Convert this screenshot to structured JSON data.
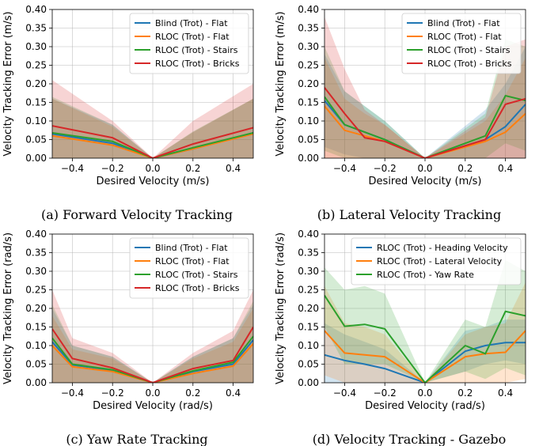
{
  "chart_data": [
    {
      "type": "line",
      "caption": "(a) Forward Velocity Tracking",
      "xlabel": "Desired Velocity (m/s)",
      "ylabel": "Velocity Tracking Error (m/s)",
      "xlim": [
        -0.5,
        0.5
      ],
      "ylim": [
        0,
        0.4
      ],
      "xticks": [
        -0.4,
        -0.2,
        0.0,
        0.2,
        0.4
      ],
      "xtick_labels": [
        "−0.4",
        "−0.2",
        "0.0",
        "0.2",
        "0.4"
      ],
      "yticks": [
        0,
        0.05,
        0.1,
        0.15,
        0.2,
        0.25,
        0.3,
        0.35,
        0.4
      ],
      "ytick_labels": [
        "0.00",
        "0.05",
        "0.10",
        "0.15",
        "0.20",
        "0.25",
        "0.30",
        "0.35",
        "0.40"
      ],
      "grid": true,
      "legend": "top-right",
      "x": [
        -0.5,
        -0.2,
        0.0,
        0.2,
        0.5
      ],
      "series": [
        {
          "name": "Blind (Trot) - Flat",
          "color": "#1f77b4",
          "values": [
            0.065,
            0.04,
            0.0,
            0.025,
            0.068
          ],
          "lower": [
            0.0,
            0.0,
            0.0,
            0.0,
            0.0
          ],
          "upper": [
            0.16,
            0.09,
            0.0,
            0.07,
            0.16
          ]
        },
        {
          "name": "RLOC (Trot) - Flat",
          "color": "#ff7f0e",
          "values": [
            0.06,
            0.035,
            0.0,
            0.025,
            0.065
          ],
          "lower": [
            0.0,
            0.0,
            0.0,
            0.0,
            0.0
          ],
          "upper": [
            0.16,
            0.085,
            0.0,
            0.07,
            0.16
          ]
        },
        {
          "name": "RLOC (Trot) - Stairs",
          "color": "#2ca02c",
          "values": [
            0.068,
            0.045,
            0.0,
            0.028,
            0.068
          ],
          "lower": [
            0.0,
            0.0,
            0.0,
            0.0,
            0.0
          ],
          "upper": [
            0.165,
            0.09,
            0.0,
            0.072,
            0.16
          ]
        },
        {
          "name": "RLOC (Trot) - Bricks",
          "color": "#d62728",
          "values": [
            0.087,
            0.055,
            0.0,
            0.038,
            0.082
          ],
          "lower": [
            0.0,
            0.0,
            0.0,
            0.0,
            0.0
          ],
          "upper": [
            0.21,
            0.1,
            0.0,
            0.1,
            0.2
          ]
        }
      ]
    },
    {
      "type": "line",
      "caption": "(b) Lateral Velocity Tracking",
      "xlabel": "Desired Velocity (m/s)",
      "ylabel": "Velocity Tracking Error (m/s)",
      "xlim": [
        -0.5,
        0.5
      ],
      "ylim": [
        0,
        0.4
      ],
      "xticks": [
        -0.4,
        -0.2,
        0.0,
        0.2,
        0.4
      ],
      "xtick_labels": [
        "−0.4",
        "−0.2",
        "0.0",
        "0.2",
        "0.4"
      ],
      "yticks": [
        0,
        0.05,
        0.1,
        0.15,
        0.2,
        0.25,
        0.3,
        0.35,
        0.4
      ],
      "ytick_labels": [
        "0.00",
        "0.05",
        "0.10",
        "0.15",
        "0.20",
        "0.25",
        "0.30",
        "0.35",
        "0.40"
      ],
      "grid": true,
      "legend": "top-right",
      "x": [
        -0.5,
        -0.4,
        -0.3,
        -0.2,
        0.0,
        0.3,
        0.4,
        0.5
      ],
      "series": [
        {
          "name": "Blind (Trot) - Flat",
          "color": "#1f77b4",
          "values": [
            0.155,
            0.09,
            0.07,
            0.05,
            0.0,
            0.05,
            0.085,
            0.145
          ],
          "lower": [
            0.03,
            0.01,
            0.0,
            0.0,
            0.0,
            0.0,
            0.0,
            0.0
          ],
          "upper": [
            0.28,
            0.18,
            0.14,
            0.1,
            0.0,
            0.13,
            0.2,
            0.3
          ]
        },
        {
          "name": "RLOC (Trot) - Flat",
          "color": "#ff7f0e",
          "values": [
            0.14,
            0.075,
            0.06,
            0.045,
            0.0,
            0.045,
            0.07,
            0.12
          ],
          "lower": [
            0.0,
            0.0,
            0.0,
            0.0,
            0.0,
            0.0,
            0.0,
            0.0
          ],
          "upper": [
            0.27,
            0.16,
            0.12,
            0.09,
            0.0,
            0.1,
            0.17,
            0.27
          ]
        },
        {
          "name": "RLOC (Trot) - Stairs",
          "color": "#2ca02c",
          "values": [
            0.165,
            0.09,
            0.07,
            0.05,
            0.0,
            0.06,
            0.168,
            0.155
          ],
          "lower": [
            0.02,
            0.0,
            0.0,
            0.0,
            0.0,
            0.0,
            0.04,
            0.02
          ],
          "upper": [
            0.3,
            0.18,
            0.14,
            0.1,
            0.0,
            0.12,
            0.32,
            0.3
          ]
        },
        {
          "name": "RLOC (Trot) - Bricks",
          "color": "#d62728",
          "values": [
            0.19,
            0.12,
            0.055,
            0.045,
            0.0,
            0.05,
            0.145,
            0.16
          ],
          "lower": [
            0.0,
            0.0,
            0.0,
            0.0,
            0.0,
            0.0,
            0.0,
            0.0
          ],
          "upper": [
            0.38,
            0.24,
            0.13,
            0.09,
            0.0,
            0.11,
            0.3,
            0.32
          ]
        }
      ]
    },
    {
      "type": "line",
      "caption": "(c) Yaw Rate Tracking",
      "xlabel": "Desired Velocity (rad/s)",
      "ylabel": "Velocity Tracking Error (rad/s)",
      "xlim": [
        -0.5,
        0.5
      ],
      "ylim": [
        0,
        0.4
      ],
      "xticks": [
        -0.4,
        -0.2,
        0.0,
        0.2,
        0.4
      ],
      "xtick_labels": [
        "−0.4",
        "−0.2",
        "0.0",
        "0.2",
        "0.4"
      ],
      "yticks": [
        0,
        0.05,
        0.1,
        0.15,
        0.2,
        0.25,
        0.3,
        0.35,
        0.4
      ],
      "ytick_labels": [
        "0.00",
        "0.05",
        "0.10",
        "0.15",
        "0.20",
        "0.25",
        "0.30",
        "0.35",
        "0.40"
      ],
      "grid": true,
      "legend": "top-right",
      "x": [
        -0.5,
        -0.4,
        -0.2,
        0.0,
        0.2,
        0.4,
        0.5
      ],
      "series": [
        {
          "name": "Blind (Trot) - Flat",
          "color": "#1f77b4",
          "values": [
            0.11,
            0.048,
            0.033,
            0.0,
            0.03,
            0.05,
            0.115
          ],
          "lower": [
            0.0,
            0.0,
            0.0,
            0.0,
            0.0,
            0.0,
            0.0
          ],
          "upper": [
            0.2,
            0.1,
            0.07,
            0.0,
            0.07,
            0.12,
            0.21
          ]
        },
        {
          "name": "RLOC (Trot) - Flat",
          "color": "#ff7f0e",
          "values": [
            0.1,
            0.043,
            0.03,
            0.0,
            0.025,
            0.045,
            0.105
          ],
          "lower": [
            0.0,
            0.0,
            0.0,
            0.0,
            0.0,
            0.0,
            0.0
          ],
          "upper": [
            0.18,
            0.09,
            0.065,
            0.0,
            0.065,
            0.11,
            0.2
          ]
        },
        {
          "name": "RLOC (Trot) - Stairs",
          "color": "#2ca02c",
          "values": [
            0.12,
            0.05,
            0.035,
            0.0,
            0.032,
            0.055,
            0.125
          ],
          "lower": [
            0.0,
            0.0,
            0.0,
            0.0,
            0.0,
            0.0,
            0.0
          ],
          "upper": [
            0.21,
            0.1,
            0.07,
            0.0,
            0.07,
            0.12,
            0.22
          ]
        },
        {
          "name": "RLOC (Trot) - Bricks",
          "color": "#d62728",
          "values": [
            0.145,
            0.065,
            0.04,
            0.0,
            0.038,
            0.06,
            0.15
          ],
          "lower": [
            0.0,
            0.0,
            0.0,
            0.0,
            0.0,
            0.0,
            0.0
          ],
          "upper": [
            0.25,
            0.12,
            0.08,
            0.0,
            0.08,
            0.14,
            0.25
          ]
        }
      ]
    },
    {
      "type": "line",
      "caption": "(d) Velocity Tracking - Gazebo",
      "xlabel": "Desired Velocity (rad/s)",
      "ylabel": "Velocity Tracking Error (rad/s)",
      "xlim": [
        -0.5,
        0.5
      ],
      "ylim": [
        0,
        0.4
      ],
      "xticks": [
        -0.4,
        -0.2,
        0.0,
        0.2,
        0.4
      ],
      "xtick_labels": [
        "−0.4",
        "−0.2",
        "0.0",
        "0.2",
        "0.4"
      ],
      "yticks": [
        0,
        0.05,
        0.1,
        0.15,
        0.2,
        0.25,
        0.3,
        0.35,
        0.4
      ],
      "ytick_labels": [
        "0.00",
        "0.05",
        "0.10",
        "0.15",
        "0.20",
        "0.25",
        "0.30",
        "0.35",
        "0.40"
      ],
      "grid": true,
      "legend": "top-right",
      "x": [
        -0.5,
        -0.4,
        -0.3,
        -0.2,
        0.0,
        0.2,
        0.3,
        0.4,
        0.5
      ],
      "series": [
        {
          "name": "RLOC (Trot) - Heading Velocity",
          "color": "#1f77b4",
          "values": [
            0.075,
            0.06,
            0.05,
            0.038,
            0.0,
            0.085,
            0.1,
            0.108,
            0.108
          ],
          "lower": [
            0.0,
            0.0,
            0.0,
            0.0,
            0.0,
            0.03,
            0.05,
            0.06,
            0.05
          ],
          "upper": [
            0.16,
            0.13,
            0.11,
            0.09,
            0.0,
            0.14,
            0.15,
            0.17,
            0.17
          ]
        },
        {
          "name": "RLOC (Trot) - Lateral Velocity",
          "color": "#ff7f0e",
          "values": [
            0.14,
            0.08,
            0.075,
            0.07,
            0.0,
            0.07,
            0.078,
            0.082,
            0.14
          ],
          "lower": [
            0.02,
            0.0,
            0.0,
            0.0,
            0.0,
            0.0,
            0.0,
            0.0,
            0.01
          ],
          "upper": [
            0.26,
            0.16,
            0.15,
            0.13,
            0.0,
            0.13,
            0.15,
            0.16,
            0.27
          ]
        },
        {
          "name": "RLOC (Trot) - Yaw Rate",
          "color": "#2ca02c",
          "values": [
            0.235,
            0.152,
            0.157,
            0.145,
            0.0,
            0.1,
            0.078,
            0.192,
            0.18
          ],
          "lower": [
            0.15,
            0.05,
            0.05,
            0.05,
            0.0,
            0.03,
            0.01,
            0.04,
            0.02
          ],
          "upper": [
            0.31,
            0.25,
            0.26,
            0.24,
            0.0,
            0.17,
            0.15,
            0.33,
            0.3
          ]
        }
      ]
    }
  ]
}
